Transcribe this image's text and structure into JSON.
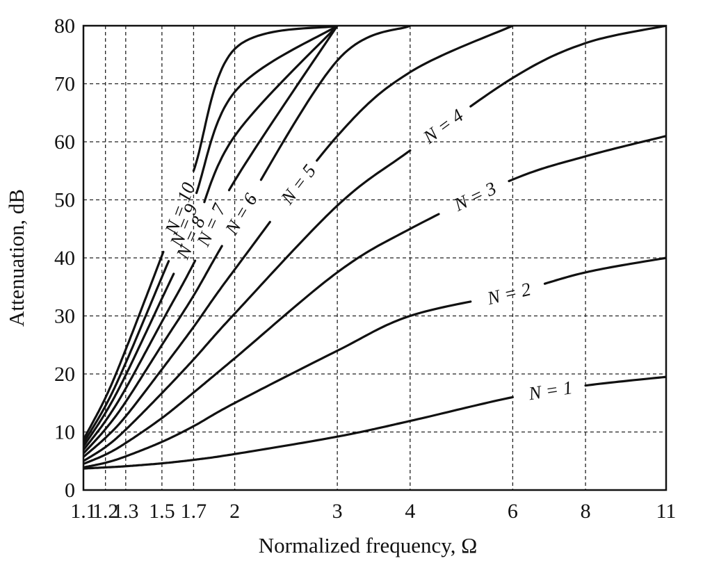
{
  "chart_data": {
    "type": "line",
    "title": "",
    "xlabel": "Normalized frequency, Ω",
    "ylabel": "Attenuation, dB",
    "xscale": "log",
    "xlim": [
      1.1,
      11
    ],
    "ylim": [
      0,
      80
    ],
    "grid": true,
    "grid_style": "dashed",
    "x_ticks": [
      1.1,
      1.2,
      1.3,
      1.5,
      1.7,
      2,
      3,
      4,
      6,
      8,
      11
    ],
    "x_tick_labels": [
      "1.1",
      "1.2",
      "1.3",
      "1.5",
      "1.7",
      "2",
      "3",
      "4",
      "6",
      "8",
      "11"
    ],
    "y_ticks": [
      0,
      10,
      20,
      30,
      40,
      50,
      60,
      70,
      80
    ],
    "y_tick_labels": [
      "0",
      "10",
      "20",
      "30",
      "40",
      "50",
      "60",
      "70",
      "80"
    ],
    "x": [
      1.1,
      1.2,
      1.3,
      1.5,
      1.7,
      2,
      3,
      4,
      6,
      8,
      11
    ],
    "series": [
      {
        "name": "N = 1",
        "label": "N = 1",
        "values": [
          3.7,
          3.9,
          4.1,
          4.6,
          5.2,
          6.2,
          9.2,
          11.9,
          16.0,
          18.0,
          19.5
        ]
      },
      {
        "name": "N = 2",
        "label": "N = 2",
        "values": [
          3.9,
          4.7,
          5.8,
          8.3,
          11.0,
          15.0,
          24.0,
          30.0,
          34.0,
          37.5,
          40.0
        ]
      },
      {
        "name": "N = 3",
        "label": "N = 3",
        "values": [
          4.5,
          6.1,
          8.1,
          12.4,
          16.8,
          22.7,
          37.5,
          45.0,
          53.5,
          57.5,
          61.0
        ]
      },
      {
        "name": "N = 4",
        "label": "N = 4",
        "values": [
          5.0,
          7.4,
          10.4,
          16.7,
          22.5,
          30.4,
          49.0,
          58.5,
          71.0,
          77.0,
          80.0
        ]
      },
      {
        "name": "N = 5",
        "label": "N = 5",
        "values": [
          5.7,
          9.0,
          12.7,
          20.8,
          28.1,
          38.0,
          61.0,
          72.0,
          80.0,
          80.0,
          80.0
        ]
      },
      {
        "name": "N = 6",
        "label": "N = 6",
        "values": [
          6.3,
          10.5,
          15.2,
          25.0,
          33.5,
          45.7,
          74.0,
          80.0,
          80.0,
          80.0,
          80.0
        ]
      },
      {
        "name": "N = 7",
        "label": "N = 7",
        "values": [
          6.9,
          11.9,
          17.5,
          29.0,
          39.0,
          53.3,
          80.0,
          80.0,
          80.0,
          80.0,
          80.0
        ]
      },
      {
        "name": "N = 8",
        "label": "N = 8",
        "values": [
          7.5,
          13.3,
          19.8,
          33.0,
          44.6,
          61.0,
          80.0,
          80.0,
          80.0,
          80.0,
          80.0
        ]
      },
      {
        "name": "N = 9",
        "label": "N = 9",
        "values": [
          8.1,
          14.5,
          21.9,
          36.7,
          49.8,
          68.6,
          80.0,
          80.0,
          80.0,
          80.0,
          80.0
        ]
      },
      {
        "name": "N = 10",
        "label": "N = 10",
        "values": [
          8.7,
          15.9,
          24.2,
          40.4,
          55.0,
          76.0,
          80.0,
          80.0,
          80.0,
          80.0,
          80.0
        ]
      }
    ]
  }
}
